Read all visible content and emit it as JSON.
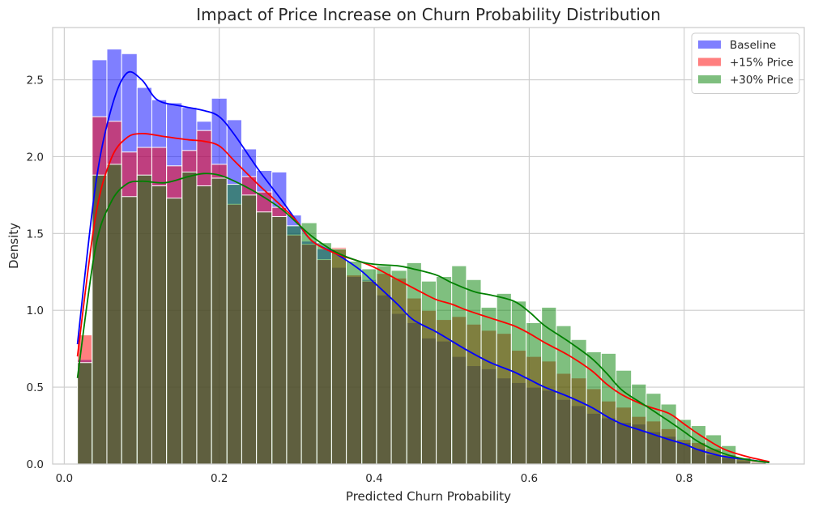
{
  "chart_data": {
    "type": "bar",
    "title": "Impact of Price Increase on Churn Probability Distribution",
    "xlabel": "Predicted Churn Probability",
    "ylabel": "Density",
    "xlim": [
      -0.015,
      0.955
    ],
    "ylim": [
      0,
      2.84
    ],
    "xticks": [
      0.0,
      0.2,
      0.4,
      0.6,
      0.8
    ],
    "xtick_labels": [
      "0.0",
      "0.2",
      "0.4",
      "0.6",
      "0.8"
    ],
    "yticks": [
      0.0,
      0.5,
      1.0,
      1.5,
      2.0,
      2.5
    ],
    "ytick_labels": [
      "0.0",
      "0.5",
      "1.0",
      "1.5",
      "2.0",
      "2.5"
    ],
    "grid": true,
    "legend_position": "top-right",
    "bin_edges": [
      0.017,
      0.036,
      0.055,
      0.074,
      0.094,
      0.113,
      0.132,
      0.152,
      0.171,
      0.19,
      0.21,
      0.229,
      0.248,
      0.268,
      0.287,
      0.306,
      0.326,
      0.345,
      0.364,
      0.384,
      0.403,
      0.422,
      0.442,
      0.461,
      0.48,
      0.5,
      0.519,
      0.538,
      0.558,
      0.577,
      0.596,
      0.616,
      0.635,
      0.654,
      0.674,
      0.693,
      0.712,
      0.732,
      0.751,
      0.77,
      0.79,
      0.809,
      0.828,
      0.848,
      0.867,
      0.886,
      0.906
    ],
    "series": [
      {
        "name": "Baseline",
        "color": "#0000ff",
        "kde_color": "#0000ff",
        "densities": [
          0.68,
          2.63,
          2.7,
          2.67,
          2.45,
          2.37,
          2.35,
          2.32,
          2.23,
          2.38,
          2.24,
          2.05,
          1.91,
          1.9,
          1.62,
          1.45,
          1.4,
          1.28,
          1.22,
          1.2,
          1.1,
          0.98,
          0.92,
          0.82,
          0.8,
          0.7,
          0.64,
          0.62,
          0.56,
          0.53,
          0.5,
          0.48,
          0.42,
          0.38,
          0.33,
          0.3,
          0.27,
          0.26,
          0.21,
          0.18,
          0.14,
          0.1,
          0.06,
          0.04,
          0.02,
          0.01
        ],
        "kde": [
          [
            0.017,
            0.78
          ],
          [
            0.04,
            1.8
          ],
          [
            0.06,
            2.3
          ],
          [
            0.08,
            2.54
          ],
          [
            0.1,
            2.5
          ],
          [
            0.12,
            2.37
          ],
          [
            0.15,
            2.33
          ],
          [
            0.18,
            2.3
          ],
          [
            0.2,
            2.26
          ],
          [
            0.22,
            2.14
          ],
          [
            0.25,
            1.92
          ],
          [
            0.28,
            1.72
          ],
          [
            0.3,
            1.58
          ],
          [
            0.32,
            1.45
          ],
          [
            0.35,
            1.37
          ],
          [
            0.38,
            1.27
          ],
          [
            0.4,
            1.18
          ],
          [
            0.43,
            1.04
          ],
          [
            0.45,
            0.94
          ],
          [
            0.48,
            0.86
          ],
          [
            0.5,
            0.8
          ],
          [
            0.52,
            0.74
          ],
          [
            0.55,
            0.66
          ],
          [
            0.58,
            0.6
          ],
          [
            0.6,
            0.55
          ],
          [
            0.62,
            0.5
          ],
          [
            0.65,
            0.44
          ],
          [
            0.68,
            0.37
          ],
          [
            0.7,
            0.31
          ],
          [
            0.72,
            0.26
          ],
          [
            0.75,
            0.21
          ],
          [
            0.78,
            0.16
          ],
          [
            0.8,
            0.13
          ],
          [
            0.82,
            0.09
          ],
          [
            0.85,
            0.05
          ],
          [
            0.88,
            0.03
          ],
          [
            0.91,
            0.01
          ]
        ]
      },
      {
        "name": "+15% Price",
        "color": "#ff0000",
        "kde_color": "#ff0000",
        "densities": [
          0.84,
          2.26,
          2.23,
          2.03,
          2.06,
          2.06,
          1.94,
          2.04,
          2.17,
          1.95,
          1.69,
          1.87,
          1.77,
          1.67,
          1.49,
          1.43,
          1.33,
          1.41,
          1.23,
          1.19,
          1.24,
          1.21,
          1.08,
          1.0,
          0.94,
          0.96,
          0.91,
          0.87,
          0.85,
          0.74,
          0.7,
          0.67,
          0.59,
          0.56,
          0.49,
          0.41,
          0.37,
          0.31,
          0.28,
          0.23,
          0.16,
          0.14,
          0.1,
          0.06,
          0.04,
          0.02
        ],
        "kde": [
          [
            0.017,
            0.7
          ],
          [
            0.04,
            1.6
          ],
          [
            0.06,
            1.98
          ],
          [
            0.08,
            2.12
          ],
          [
            0.1,
            2.15
          ],
          [
            0.13,
            2.13
          ],
          [
            0.16,
            2.11
          ],
          [
            0.18,
            2.1
          ],
          [
            0.2,
            2.07
          ],
          [
            0.22,
            1.97
          ],
          [
            0.25,
            1.82
          ],
          [
            0.28,
            1.68
          ],
          [
            0.3,
            1.58
          ],
          [
            0.32,
            1.45
          ],
          [
            0.35,
            1.37
          ],
          [
            0.38,
            1.32
          ],
          [
            0.4,
            1.28
          ],
          [
            0.43,
            1.2
          ],
          [
            0.46,
            1.12
          ],
          [
            0.48,
            1.07
          ],
          [
            0.5,
            1.04
          ],
          [
            0.52,
            1.0
          ],
          [
            0.55,
            0.95
          ],
          [
            0.58,
            0.9
          ],
          [
            0.6,
            0.85
          ],
          [
            0.62,
            0.79
          ],
          [
            0.65,
            0.71
          ],
          [
            0.68,
            0.61
          ],
          [
            0.7,
            0.52
          ],
          [
            0.72,
            0.45
          ],
          [
            0.75,
            0.38
          ],
          [
            0.78,
            0.33
          ],
          [
            0.8,
            0.26
          ],
          [
            0.82,
            0.19
          ],
          [
            0.85,
            0.1
          ],
          [
            0.88,
            0.05
          ],
          [
            0.91,
            0.015
          ]
        ]
      },
      {
        "name": "+30% Price",
        "color": "#008000",
        "kde_color": "#008000",
        "densities": [
          0.66,
          1.88,
          1.95,
          1.74,
          1.88,
          1.81,
          1.73,
          1.9,
          1.81,
          1.86,
          1.82,
          1.75,
          1.64,
          1.61,
          1.55,
          1.57,
          1.44,
          1.4,
          1.32,
          1.27,
          1.29,
          1.26,
          1.31,
          1.19,
          1.22,
          1.29,
          1.2,
          1.02,
          1.11,
          1.06,
          0.92,
          1.02,
          0.9,
          0.81,
          0.73,
          0.72,
          0.61,
          0.52,
          0.46,
          0.39,
          0.29,
          0.25,
          0.19,
          0.12,
          0.04,
          0.01
        ],
        "kde": [
          [
            0.017,
            0.56
          ],
          [
            0.04,
            1.4
          ],
          [
            0.06,
            1.7
          ],
          [
            0.08,
            1.82
          ],
          [
            0.1,
            1.84
          ],
          [
            0.13,
            1.83
          ],
          [
            0.16,
            1.87
          ],
          [
            0.18,
            1.89
          ],
          [
            0.2,
            1.88
          ],
          [
            0.22,
            1.84
          ],
          [
            0.25,
            1.76
          ],
          [
            0.28,
            1.66
          ],
          [
            0.3,
            1.57
          ],
          [
            0.32,
            1.48
          ],
          [
            0.35,
            1.38
          ],
          [
            0.38,
            1.32
          ],
          [
            0.4,
            1.3
          ],
          [
            0.43,
            1.29
          ],
          [
            0.45,
            1.27
          ],
          [
            0.48,
            1.23
          ],
          [
            0.5,
            1.18
          ],
          [
            0.53,
            1.12
          ],
          [
            0.55,
            1.1
          ],
          [
            0.58,
            1.06
          ],
          [
            0.6,
            0.99
          ],
          [
            0.62,
            0.9
          ],
          [
            0.65,
            0.8
          ],
          [
            0.68,
            0.69
          ],
          [
            0.7,
            0.59
          ],
          [
            0.72,
            0.48
          ],
          [
            0.75,
            0.38
          ],
          [
            0.78,
            0.28
          ],
          [
            0.8,
            0.21
          ],
          [
            0.82,
            0.14
          ],
          [
            0.85,
            0.07
          ],
          [
            0.88,
            0.03
          ],
          [
            0.91,
            0.01
          ]
        ]
      }
    ]
  }
}
